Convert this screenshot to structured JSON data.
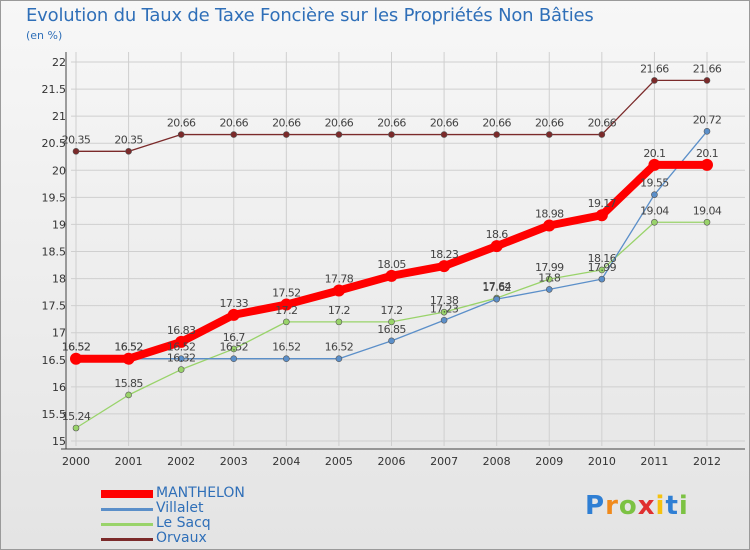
{
  "chart_data": {
    "type": "line",
    "title": "Evolution du Taux de Taxe Foncière sur les Propriétés Non Bâties",
    "subtitle": "(en %)",
    "x": [
      "2000",
      "2001",
      "2002",
      "2003",
      "2004",
      "2005",
      "2006",
      "2007",
      "2008",
      "2009",
      "2010",
      "2011",
      "2012"
    ],
    "ylim": [
      15,
      22
    ],
    "yticks": [
      "15",
      "15.5",
      "16",
      "16.5",
      "17",
      "17.5",
      "18",
      "18.5",
      "19",
      "19.5",
      "20",
      "20.5",
      "21",
      "21.5",
      "22"
    ],
    "grid": true,
    "legend_position": "bottom-left",
    "series": [
      {
        "name": "MANTHELON",
        "color": "#ff0000",
        "values": [
          16.52,
          16.52,
          16.83,
          17.33,
          17.52,
          17.78,
          18.05,
          18.23,
          18.6,
          18.98,
          19.17,
          20.1,
          20.1
        ],
        "labels": [
          "16.52",
          "16.52",
          "16.83",
          "17.33",
          "17.52",
          "17.78",
          "18.05",
          "18.23",
          "18.6",
          "18.98",
          "19.17",
          "20.1",
          "20.1"
        ]
      },
      {
        "name": "Villalet",
        "color": "#5b8fc9",
        "values": [
          16.52,
          16.52,
          16.52,
          16.52,
          16.52,
          16.52,
          16.85,
          17.23,
          17.62,
          17.8,
          17.99,
          19.55,
          20.72
        ],
        "labels": [
          "16.52",
          "16.52",
          "16.52",
          "16.52",
          "16.52",
          "16.52",
          "16.85",
          "17.23",
          "17.62",
          "17.8",
          "17.99",
          "19.55",
          "20.72"
        ]
      },
      {
        "name": "Le Sacq",
        "color": "#99d36a",
        "values": [
          15.24,
          15.85,
          16.32,
          16.7,
          17.2,
          17.2,
          17.2,
          17.38,
          17.64,
          17.99,
          18.16,
          19.04,
          19.04
        ],
        "labels": [
          "15.24",
          "15.85",
          "16.32",
          "16.7",
          "17.2",
          "17.2",
          "17.2",
          "17.38",
          "17.64",
          "17.99",
          "18.16",
          "19.04",
          "19.04"
        ]
      },
      {
        "name": "Orvaux",
        "color": "#7b2a2a",
        "values": [
          20.35,
          20.35,
          20.66,
          20.66,
          20.66,
          20.66,
          20.66,
          20.66,
          20.66,
          20.66,
          20.66,
          21.66,
          21.66
        ],
        "labels": [
          "20.35",
          "20.35",
          "20.66",
          "20.66",
          "20.66",
          "20.66",
          "20.66",
          "20.66",
          "20.66",
          "20.66",
          "20.66",
          "21.66",
          "21.66"
        ]
      }
    ]
  },
  "logo": {
    "letters": [
      "P",
      "r",
      "o",
      "x",
      "i",
      "t",
      "i"
    ],
    "colors": [
      "#2f7fd4",
      "#f08a1c",
      "#7cc243",
      "#e03030",
      "#f5c20f",
      "#2f7fd4",
      "#7cc243"
    ]
  }
}
